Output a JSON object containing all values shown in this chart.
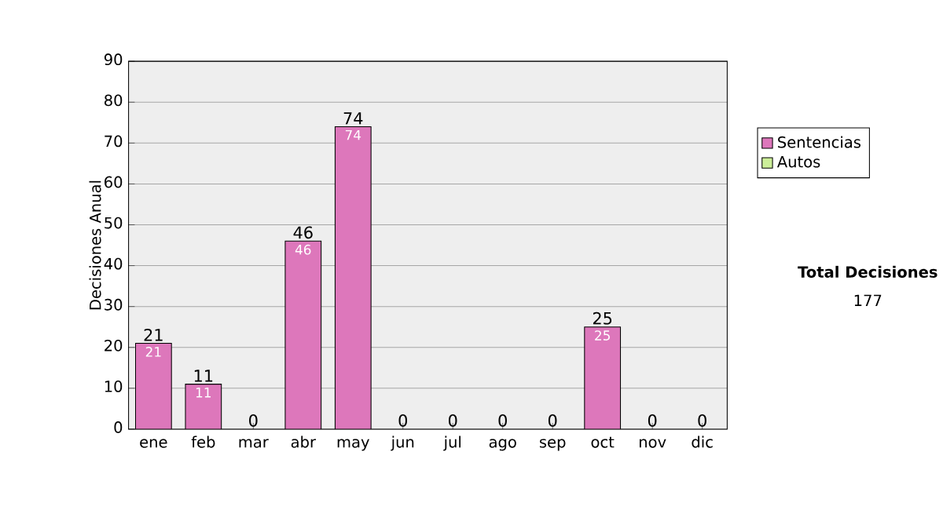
{
  "chart_data": {
    "type": "bar",
    "stacked": true,
    "ylabel": "Decisiones Anual",
    "categories": [
      "ene",
      "feb",
      "mar",
      "abr",
      "may",
      "jun",
      "jul",
      "ago",
      "sep",
      "oct",
      "nov",
      "dic"
    ],
    "series": [
      {
        "name": "Sentencias",
        "color": "#dd77bb",
        "values": [
          21,
          11,
          0,
          46,
          74,
          0,
          0,
          0,
          0,
          25,
          0,
          0
        ],
        "value_labels": [
          "21",
          "11",
          null,
          "46",
          "74",
          null,
          null,
          null,
          null,
          "25",
          null,
          null
        ]
      },
      {
        "name": "Autos",
        "color": "#ccee99",
        "values": [
          0,
          0,
          0,
          0,
          0,
          0,
          0,
          0,
          0,
          0,
          0,
          0
        ]
      }
    ],
    "totals": [
      "21",
      "11",
      "0",
      "46",
      "74",
      "0",
      "0",
      "0",
      "0",
      "25",
      "0",
      "0"
    ],
    "ylim": [
      0,
      90
    ],
    "yticks": [
      0,
      10,
      20,
      30,
      40,
      50,
      60,
      70,
      80,
      90
    ],
    "grid": "y",
    "legend": "right",
    "annotations": [
      "Total Decisiones",
      "177"
    ]
  }
}
